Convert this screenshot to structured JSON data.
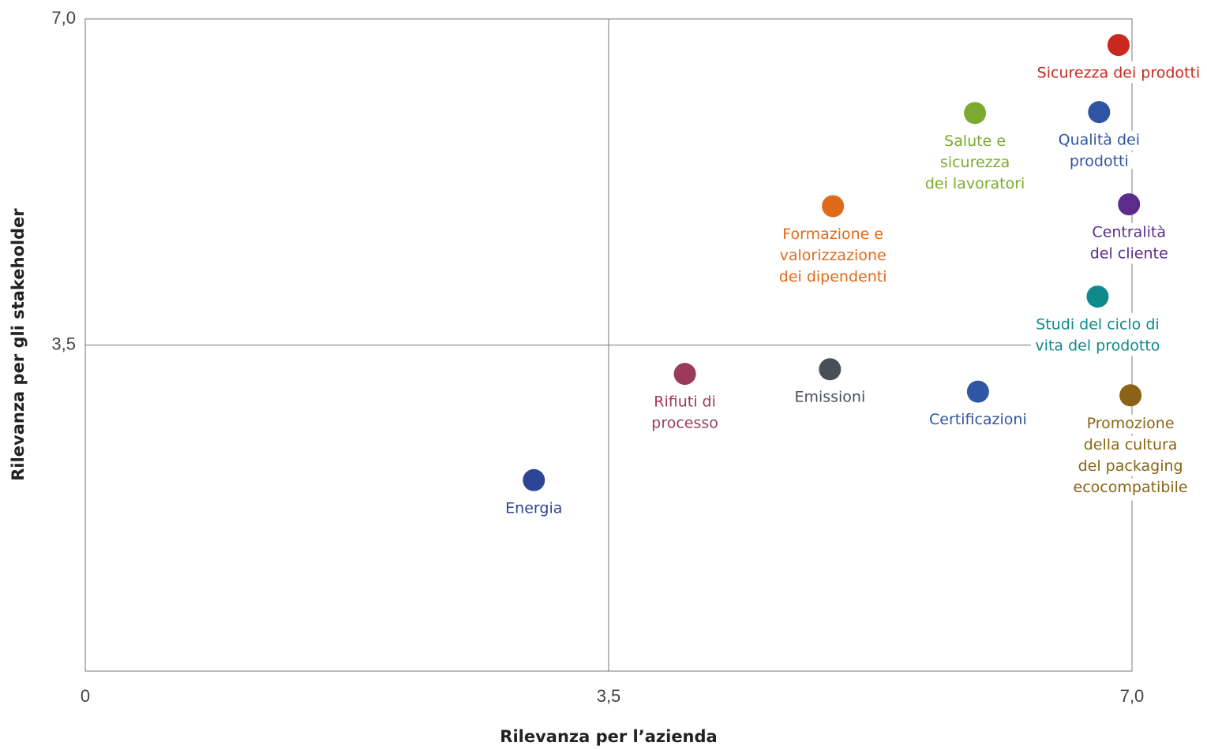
{
  "chart_data": {
    "type": "scatter",
    "x_label": "Rilevanza per l’azienda",
    "y_label": "Rilevanza per gli stakeholder",
    "xlim": [
      0,
      7
    ],
    "ylim": [
      0,
      7
    ],
    "xticks": [
      0,
      {
        "value": 3.5,
        "label": "3,5"
      },
      {
        "value": 7,
        "label": "7,0"
      }
    ],
    "yticks": [
      {
        "value": 3.5,
        "label": "3,5"
      },
      {
        "value": 7,
        "label": "7,0"
      }
    ],
    "points": [
      {
        "label": [
          "Sicurezza dei prodotti"
        ],
        "color": "#c8281e",
        "x": 6.91,
        "y": 6.72
      },
      {
        "label": [
          "Qualità dei",
          "prodotti"
        ],
        "color": "#2f55a5",
        "x": 6.78,
        "y": 6.0
      },
      {
        "label": [
          "Salute e",
          "sicurezza",
          "dei lavoratori"
        ],
        "color": "#7aab2e",
        "x": 5.95,
        "y": 5.99
      },
      {
        "label": [
          "Centralità",
          "del cliente"
        ],
        "color": "#5a2d8c",
        "x": 6.98,
        "y": 5.01
      },
      {
        "label": [
          "Formazione e",
          "valorizzazione",
          "dei dipendenti"
        ],
        "color": "#e06a1a",
        "x": 5.0,
        "y": 4.99
      },
      {
        "label": [
          "Studi del ciclo di",
          "vita del prodotto"
        ],
        "color": "#0e8a8a",
        "x": 6.77,
        "y": 4.02
      },
      {
        "label": [
          "Rifiuti di",
          "processo"
        ],
        "color": "#9b3a5a",
        "x": 4.01,
        "y": 3.19
      },
      {
        "label": [
          "Emissioni"
        ],
        "color": "#4a4f55",
        "x": 4.98,
        "y": 3.24
      },
      {
        "label": [
          "Certificazioni"
        ],
        "color": "#2f55a5",
        "x": 5.97,
        "y": 3.0
      },
      {
        "label": [
          "Promozione",
          "della cultura",
          "del packaging",
          "ecocompatibile"
        ],
        "color": "#8a6414",
        "x": 6.99,
        "y": 2.96
      },
      {
        "label": [
          "Energia"
        ],
        "color": "#2c4596",
        "x": 3.0,
        "y": 2.05
      }
    ]
  }
}
